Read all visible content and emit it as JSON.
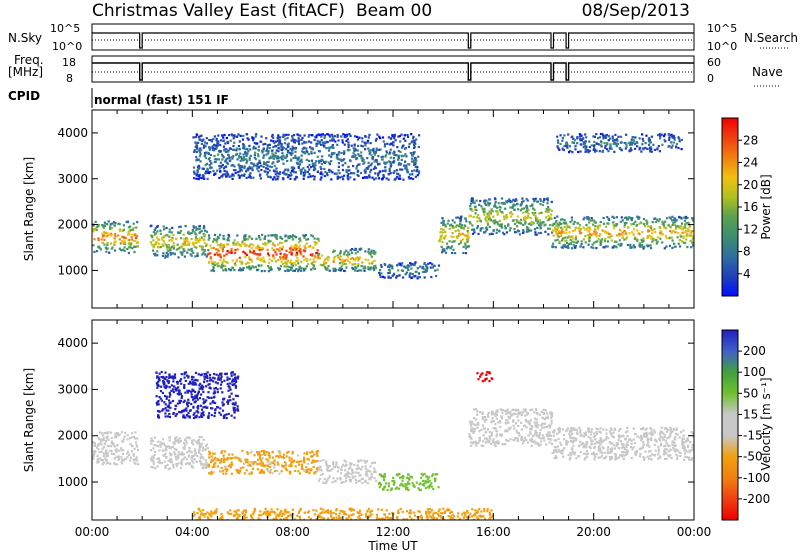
{
  "header": {
    "title": "Christmas Valley East (fitACF)",
    "beam": "Beam 00",
    "date": "08/Sep/2013"
  },
  "params": {
    "nsky_label": "N.Sky",
    "nsky_ticks": [
      "10^5",
      "10^0"
    ],
    "nsearch_label": "N.Search",
    "freq_label_1": "Freq.",
    "freq_label_2": "[MHz]",
    "freq_ticks": [
      "18",
      "8"
    ],
    "nave_label": "Nave",
    "nave_ticks": [
      "60",
      "0"
    ],
    "cpid_label": "CPID",
    "cpid_value": "normal (fast) 151 IF"
  },
  "x_axis": {
    "label": "Time UT",
    "ticks": [
      "00:00",
      "04:00",
      "08:00",
      "12:00",
      "16:00",
      "20:00",
      "00:00"
    ]
  },
  "chart_data": [
    {
      "type": "heatmap",
      "quantity": "Power",
      "ylabel": "Slant Range [km]",
      "xlabel": "Time UT",
      "xlim_hours": [
        0,
        24
      ],
      "ylim": [
        180,
        4500
      ],
      "y_ticks": [
        1000,
        2000,
        3000,
        4000
      ],
      "colorbar": {
        "label": "Power [dB]",
        "ticks": [
          4,
          8,
          12,
          16,
          20,
          24,
          28
        ],
        "colors": [
          "#0010ff",
          "#2040b8",
          "#2f6fa0",
          "#3c8f70",
          "#5aa050",
          "#b0c020",
          "#f0c010",
          "#f08010",
          "#f04010",
          "#f00000"
        ]
      },
      "features": [
        {
          "t_start": 0.0,
          "t_end": 1.8,
          "r_low": 1400,
          "r_high": 2100,
          "level": 24
        },
        {
          "t_start": 2.3,
          "t_end": 4.6,
          "r_low": 1300,
          "r_high": 2000,
          "level": 20
        },
        {
          "t_start": 4.6,
          "t_end": 9.0,
          "r_low": 1000,
          "r_high": 1800,
          "level": 28
        },
        {
          "t_start": 9.0,
          "t_end": 11.3,
          "r_low": 1000,
          "r_high": 1500,
          "level": 22
        },
        {
          "t_start": 11.4,
          "t_end": 13.8,
          "r_low": 850,
          "r_high": 1200,
          "level": 10
        },
        {
          "t_start": 13.8,
          "t_end": 15.0,
          "r_low": 1400,
          "r_high": 2200,
          "level": 20
        },
        {
          "t_start": 15.0,
          "t_end": 18.3,
          "r_low": 1800,
          "r_high": 2600,
          "level": 18
        },
        {
          "t_start": 18.3,
          "t_end": 24.0,
          "r_low": 1500,
          "r_high": 2200,
          "level": 22
        },
        {
          "t_start": 4.0,
          "t_end": 13.0,
          "r_low": 3000,
          "r_high": 4000,
          "level": 8
        },
        {
          "t_start": 18.5,
          "t_end": 23.5,
          "r_low": 3600,
          "r_high": 4000,
          "level": 8
        }
      ]
    },
    {
      "type": "heatmap",
      "quantity": "Velocity",
      "ylabel": "Slant Range [km]",
      "xlabel": "Time UT",
      "xlim_hours": [
        0,
        24
      ],
      "ylim": [
        180,
        4500
      ],
      "y_ticks": [
        1000,
        2000,
        3000,
        4000
      ],
      "colorbar": {
        "label": "Velocity [m s⁻¹]",
        "ticks": [
          200,
          100,
          50,
          15,
          -15,
          -50,
          -100,
          -200
        ],
        "colors": [
          "#2020c0",
          "#4060c8",
          "#40a040",
          "#70c030",
          "#c8c8c8",
          "#c8c8c8",
          "#f0a010",
          "#f08010",
          "#f04010",
          "#f00000"
        ]
      },
      "features": [
        {
          "t_start": 0.0,
          "t_end": 1.8,
          "r_low": 1400,
          "r_high": 2100,
          "level": 0
        },
        {
          "t_start": 2.3,
          "t_end": 4.6,
          "r_low": 1300,
          "r_high": 2000,
          "level": 0
        },
        {
          "t_start": 4.6,
          "t_end": 9.0,
          "r_low": 1200,
          "r_high": 1700,
          "level": -40
        },
        {
          "t_start": 9.0,
          "t_end": 11.3,
          "r_low": 1000,
          "r_high": 1500,
          "level": 0
        },
        {
          "t_start": 11.4,
          "t_end": 13.8,
          "r_low": 850,
          "r_high": 1200,
          "level": 50
        },
        {
          "t_start": 15.0,
          "t_end": 18.3,
          "r_low": 1800,
          "r_high": 2600,
          "level": 0
        },
        {
          "t_start": 18.3,
          "t_end": 24.0,
          "r_low": 1500,
          "r_high": 2200,
          "level": 0
        },
        {
          "t_start": 2.5,
          "t_end": 5.8,
          "r_low": 2400,
          "r_high": 3400,
          "level": 200
        },
        {
          "t_start": 15.3,
          "t_end": 16.0,
          "r_low": 3200,
          "r_high": 3400,
          "level": -200
        },
        {
          "t_start": 4.0,
          "t_end": 16.0,
          "r_low": 180,
          "r_high": 450,
          "level": -50
        }
      ]
    }
  ]
}
